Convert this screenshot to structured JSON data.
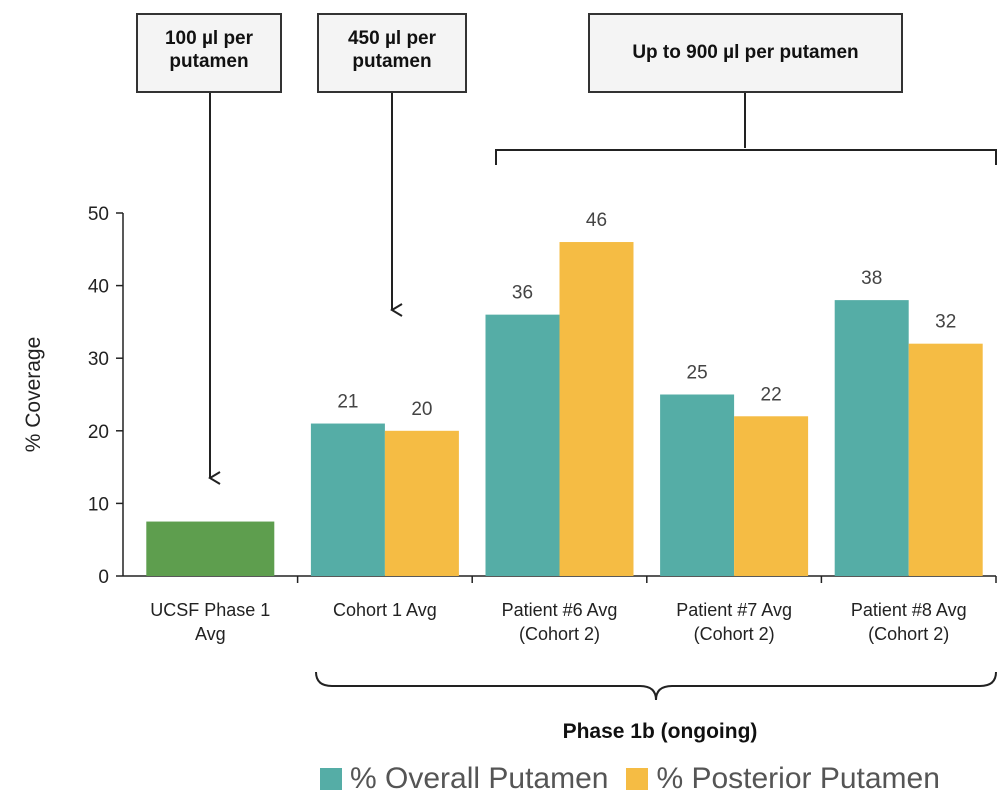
{
  "chart_data": {
    "type": "bar",
    "ylabel": "% Coverage",
    "ylim": [
      0,
      50
    ],
    "yticks": [
      0,
      10,
      20,
      30,
      40,
      50
    ],
    "categories": [
      "UCSF Phase 1\nAvg",
      "Cohort 1 Avg",
      "Patient #6 Avg\n(Cohort 2)",
      "Patient #7 Avg\n(Cohort 2)",
      "Patient #8 Avg\n(Cohort 2)"
    ],
    "series": [
      {
        "name": "% Overall Putamen",
        "color": "#55ada6",
        "values": [
          null,
          21,
          36,
          25,
          38
        ]
      },
      {
        "name": "% Posterior Putamen",
        "color": "#f5bc44",
        "values": [
          null,
          20,
          46,
          22,
          32
        ]
      }
    ],
    "single_bar": {
      "category_index": 0,
      "value": 7.5,
      "color": "#5e9e4e"
    },
    "data_labels": [
      "21",
      "20",
      "36",
      "46",
      "25",
      "22",
      "38",
      "32"
    ],
    "legend_position": "bottom",
    "grid": false
  },
  "annotations": {
    "dose_1": "100 µl per\nputamen",
    "dose_2": "450 µl per\nputamen",
    "dose_3": "Up to 900 µl per putamen",
    "phase": "Phase 1b (ongoing)"
  },
  "legend": {
    "overall": "% Overall Putamen",
    "posterior": "% Posterior Putamen"
  }
}
